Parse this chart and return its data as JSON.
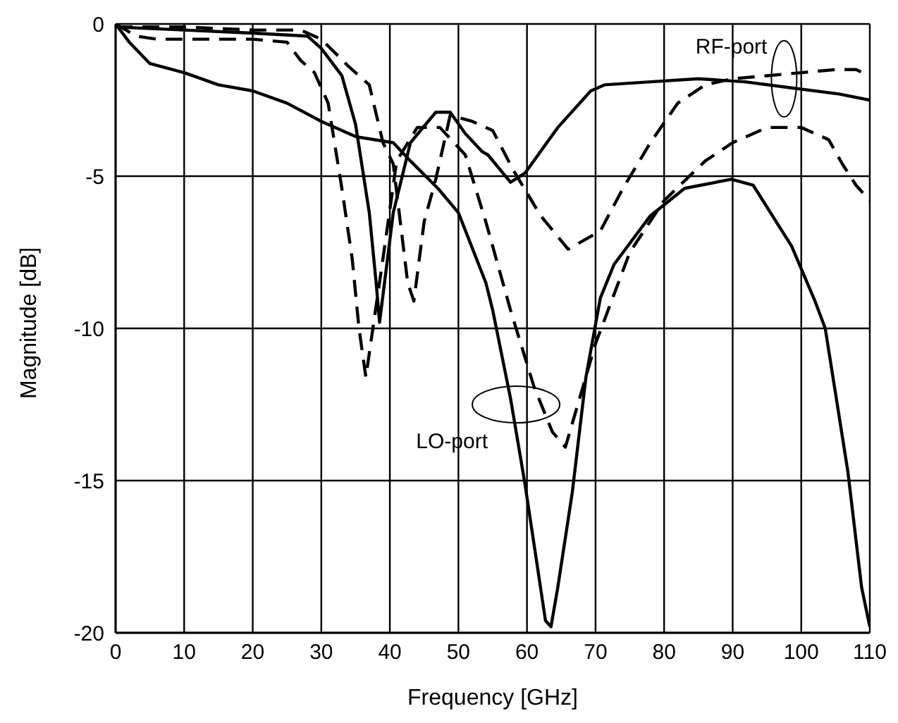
{
  "chart_data": {
    "type": "line",
    "xlabel": "Frequency [GHz]",
    "ylabel": "Magnitude [dB]",
    "xlim": [
      0,
      110
    ],
    "ylim": [
      -20,
      0
    ],
    "xticks": [
      0,
      10,
      20,
      30,
      40,
      50,
      60,
      70,
      80,
      90,
      100,
      110
    ],
    "yticks": [
      -20,
      -15,
      -10,
      -5,
      0
    ],
    "grid": true,
    "legend": false,
    "marker": "none",
    "annotations": [
      {
        "text": "RF-port",
        "x": 97.5,
        "y": -1.8
      },
      {
        "text": "LO-port",
        "x": 58.4,
        "y": -12.5
      }
    ],
    "series": [
      {
        "color": "#000000",
        "line_style": "solid",
        "x": [
          0,
          2,
          5,
          10,
          15,
          20,
          25,
          30,
          35,
          40.5,
          43,
          47,
          50,
          54,
          55,
          57.6,
          59.7,
          62.7,
          63.5,
          64.5,
          66.6,
          68.6,
          70.7,
          72.7,
          78,
          83,
          89.8,
          93,
          98.6,
          102,
          103.5,
          106.8,
          108.8,
          110
        ],
        "values": [
          0,
          -0.6,
          -1.3,
          -1.6,
          -2.0,
          -2.2,
          -2.6,
          -3.2,
          -3.7,
          -3.9,
          -4.5,
          -5.4,
          -6.2,
          -8.5,
          -9.4,
          -12.3,
          -15.1,
          -19.6,
          -19.8,
          -18.5,
          -15.4,
          -11.6,
          -9.0,
          -7.9,
          -6.3,
          -5.4,
          -5.1,
          -5.3,
          -7.3,
          -9.1,
          -10,
          -14.7,
          -18.5,
          -19.8
        ]
      },
      {
        "color": "#000000",
        "line_style": "solid",
        "x": [
          0,
          10,
          20,
          28,
          30,
          33,
          35,
          37,
          38,
          38.5,
          40.5,
          43,
          46.7,
          48.8,
          51,
          53.5,
          54.3,
          57.6,
          59.7,
          64.5,
          69.3,
          71.3,
          78,
          85,
          91.8,
          98.6,
          105.5,
          110
        ],
        "values": [
          -0.1,
          -0.2,
          -0.3,
          -0.4,
          -0.8,
          -1.7,
          -3.3,
          -6.2,
          -8.5,
          -9.8,
          -6.2,
          -3.9,
          -2.9,
          -2.9,
          -3.6,
          -4.2,
          -4.3,
          -5.2,
          -4.9,
          -3.4,
          -2.2,
          -2.0,
          -1.9,
          -1.8,
          -1.9,
          -2.1,
          -2.3,
          -2.5
        ]
      },
      {
        "color": "#000000",
        "line_style": "dashed",
        "x": [
          0,
          3,
          6,
          10,
          20,
          25,
          27,
          29,
          31,
          33,
          34.5,
          35.5,
          36.5,
          39,
          41,
          44,
          47.3,
          51,
          54,
          57.6,
          61,
          63.7,
          65.6,
          70,
          75,
          80,
          86,
          90,
          95,
          100,
          104,
          106,
          108,
          110
        ],
        "values": [
          0,
          -0.4,
          -0.5,
          -0.5,
          -0.5,
          -0.6,
          -1.2,
          -1.6,
          -2.6,
          -5.4,
          -7.7,
          -10,
          -11.6,
          -7.7,
          -4.5,
          -3.4,
          -3.4,
          -4.3,
          -6.5,
          -9.4,
          -11.9,
          -13.4,
          -13.9,
          -10.5,
          -7.5,
          -5.8,
          -4.5,
          -3.9,
          -3.4,
          -3.4,
          -3.8,
          -4.6,
          -5.3,
          -5.8
        ]
      },
      {
        "color": "#000000",
        "line_style": "dashed",
        "x": [
          0,
          10,
          20,
          27,
          30,
          34,
          37,
          39,
          40.5,
          42.6,
          43.5,
          45,
          46.7,
          48.8,
          52,
          55,
          58,
          62,
          66,
          70.7,
          74,
          78,
          82,
          86,
          90,
          95,
          100,
          105,
          108,
          110
        ],
        "values": [
          -0.1,
          -0.1,
          -0.2,
          -0.2,
          -0.5,
          -1.4,
          -2.0,
          -3.9,
          -4.6,
          -8.5,
          -9.1,
          -6.5,
          -5.1,
          -3.0,
          -3.2,
          -3.5,
          -4.8,
          -6.3,
          -7.4,
          -6.8,
          -5.4,
          -3.9,
          -2.6,
          -2.0,
          -1.8,
          -1.7,
          -1.6,
          -1.5,
          -1.5,
          -1.7
        ]
      }
    ]
  }
}
